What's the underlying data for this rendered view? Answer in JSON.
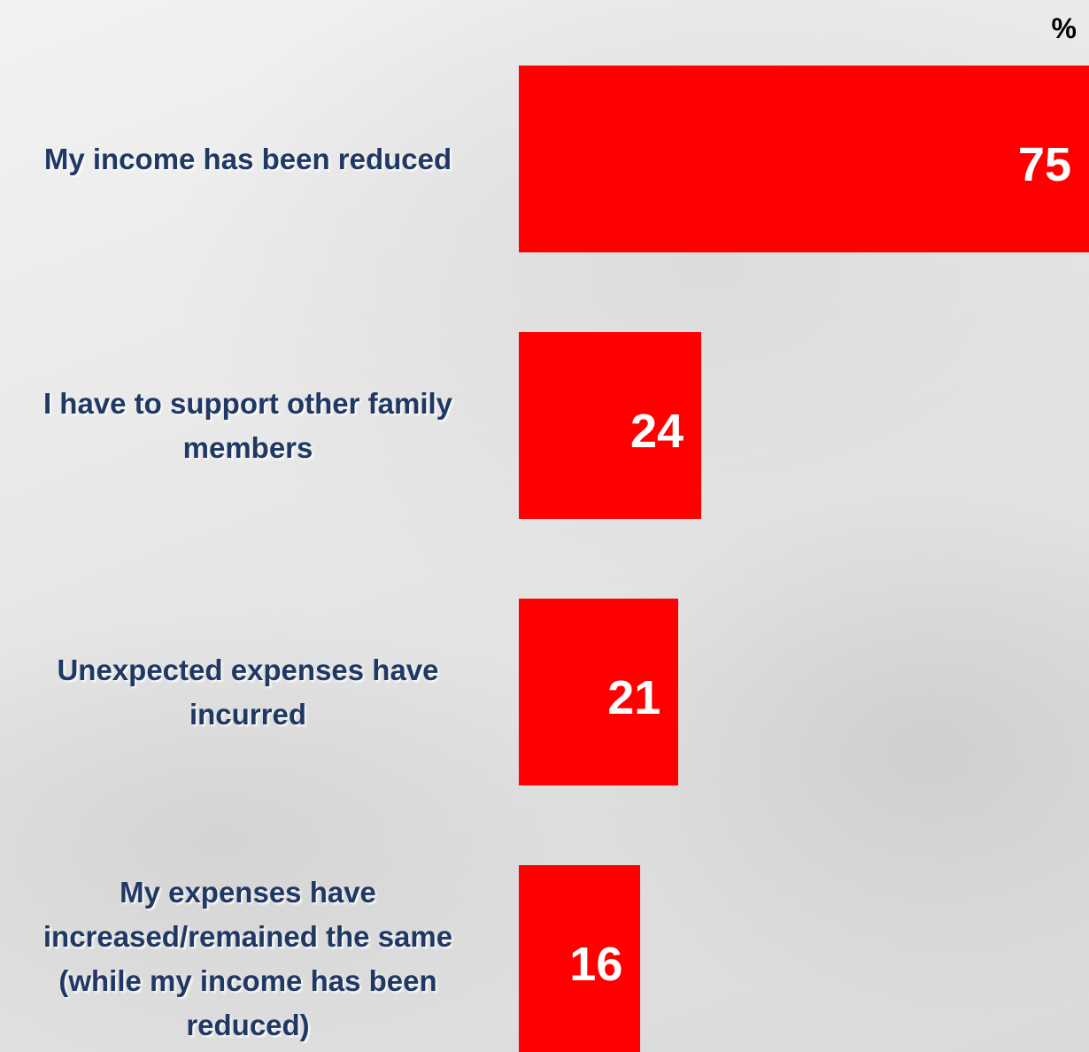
{
  "chart_data": {
    "type": "hbar",
    "unit_label": "%",
    "categories": [
      "My income has been reduced",
      "I have to support other family members",
      "Unexpected expenses have incurred",
      "My expenses have increased/remained the same (while my income has been reduced)"
    ],
    "values": [
      75,
      24,
      21,
      16
    ],
    "color": "#ff0000"
  }
}
